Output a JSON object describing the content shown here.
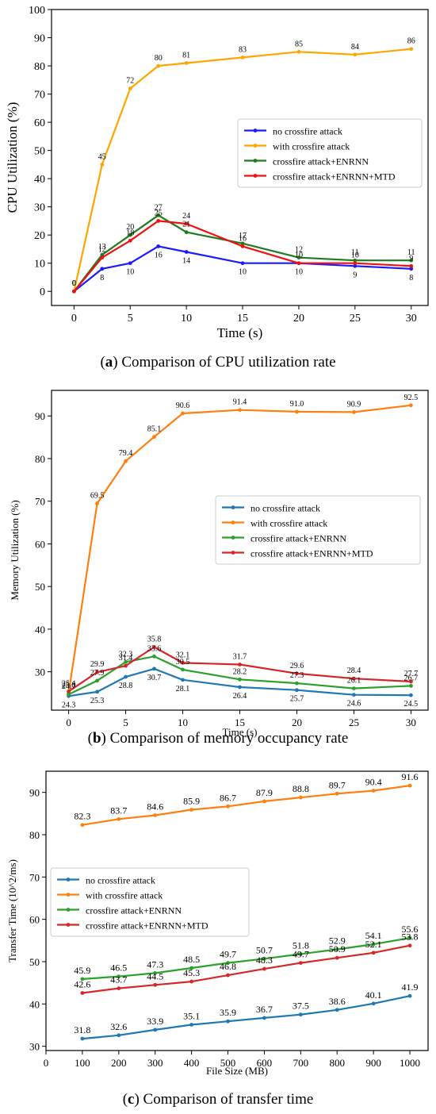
{
  "captions": [
    {
      "letter": "a",
      "text": " Comparison of CPU utilization rate"
    },
    {
      "letter": "b",
      "text": " Comparison of memory occupancy rate"
    },
    {
      "letter": "c",
      "text": " Comparison of transfer time"
    }
  ],
  "colors": {
    "a": [
      "#1a1aff",
      "#ffa500",
      "#1e7b1e",
      "#ee1111"
    ],
    "bc": [
      "#1f77b4",
      "#ff7f0e",
      "#2ca02c",
      "#d62728"
    ]
  },
  "chart_data": [
    {
      "type": "line",
      "xlabel": "Time (s)",
      "ylabel": "CPU Utilization (%)",
      "xlim": [
        -2,
        31.5
      ],
      "ylim": [
        -5,
        100
      ],
      "xticks": [
        0,
        5,
        10,
        15,
        20,
        25,
        30
      ],
      "yticks": [
        0,
        10,
        20,
        30,
        40,
        50,
        60,
        70,
        80,
        90,
        100
      ],
      "legend_position": "center-right",
      "x": [
        0,
        2.5,
        5,
        7.5,
        10,
        15,
        20,
        25,
        30
      ],
      "series": [
        {
          "name": "no crossfire attack",
          "values": [
            0,
            8,
            10,
            16,
            14,
            10,
            10,
            9,
            8
          ]
        },
        {
          "name": "with crossfire attack",
          "values": [
            0,
            45,
            72,
            80,
            81,
            83,
            85,
            84,
            86
          ]
        },
        {
          "name": "crossfire attack+ENRNN",
          "values": [
            0,
            13,
            20,
            27,
            21,
            17,
            12,
            11,
            11
          ]
        },
        {
          "name": "crossfire attack+ENRNN+MTD",
          "values": [
            0,
            12,
            18,
            25,
            24,
            16,
            10,
            10,
            9
          ]
        }
      ]
    },
    {
      "type": "line",
      "xlabel": "Time (s)",
      "ylabel": "Memory Utilization (%)",
      "xlim": [
        -1.5,
        31.5
      ],
      "ylim": [
        21,
        96
      ],
      "xticks": [
        0,
        5,
        10,
        15,
        20,
        25,
        30
      ],
      "yticks": [
        30,
        40,
        50,
        60,
        70,
        80,
        90
      ],
      "legend_position": "center-right",
      "x": [
        0,
        2.5,
        5,
        7.5,
        10,
        15,
        20,
        25,
        30
      ],
      "series": [
        {
          "name": "no crossfire attack",
          "values": [
            24.3,
            25.3,
            28.8,
            30.7,
            28.1,
            26.4,
            25.7,
            24.6,
            24.5
          ]
        },
        {
          "name": "with crossfire attack",
          "values": [
            25.0,
            69.5,
            79.4,
            85.1,
            90.6,
            91.4,
            91.0,
            90.9,
            92.5
          ]
        },
        {
          "name": "crossfire attack+ENRNN",
          "values": [
            24.7,
            27.9,
            32.3,
            33.6,
            30.5,
            28.2,
            27.3,
            26.1,
            26.7
          ]
        },
        {
          "name": "crossfire attack+ENRNN+MTD",
          "values": [
            25.4,
            29.9,
            31.4,
            35.8,
            32.1,
            31.7,
            29.6,
            28.4,
            27.7
          ]
        }
      ]
    },
    {
      "type": "line",
      "xlabel": "File Size (MB)",
      "ylabel": "Transfer Time (10^2/ms)",
      "xlim": [
        0,
        1050
      ],
      "ylim": [
        29,
        95
      ],
      "xticks": [
        0,
        100,
        200,
        300,
        400,
        500,
        600,
        700,
        800,
        900,
        1000
      ],
      "yticks": [
        30,
        40,
        50,
        60,
        70,
        80,
        90
      ],
      "legend_position": "center-left",
      "x": [
        100,
        200,
        300,
        400,
        500,
        600,
        700,
        800,
        900,
        1000
      ],
      "series": [
        {
          "name": "no crossfire attack",
          "values": [
            31.8,
            32.6,
            33.9,
            35.1,
            35.9,
            36.7,
            37.5,
            38.6,
            40.1,
            41.9
          ]
        },
        {
          "name": "with crossfire attack",
          "values": [
            82.3,
            83.7,
            84.6,
            85.9,
            86.7,
            87.9,
            88.8,
            89.7,
            90.4,
            91.6
          ]
        },
        {
          "name": "crossfire attack+ENRNN",
          "values": [
            45.9,
            46.5,
            47.3,
            48.5,
            49.7,
            50.7,
            51.8,
            52.9,
            54.1,
            55.6
          ]
        },
        {
          "name": "crossfire attack+ENRNN+MTD",
          "values": [
            42.6,
            43.7,
            44.5,
            45.3,
            46.8,
            48.3,
            49.7,
            50.9,
            52.1,
            53.8
          ]
        }
      ]
    }
  ]
}
